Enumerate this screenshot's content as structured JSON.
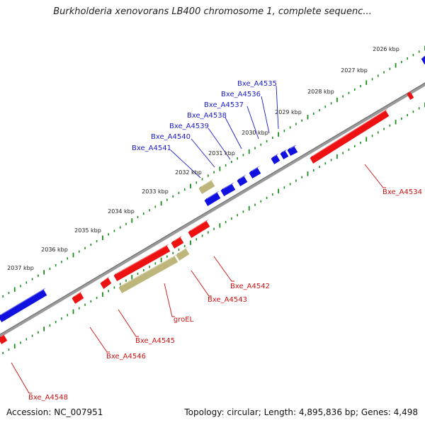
{
  "title": "Burkholderia xenovorans LB400 chromosome 1, complete sequenc...",
  "footer": {
    "accession": "Accession: NC_007951",
    "summary": "Topology: circular; Length: 4,895,836 bp; Genes: 4,498"
  },
  "colors": {
    "forward_gene": "#1010e0",
    "reverse_gene": "#ee1111",
    "rna_gene": "#bdb57a",
    "backbone": "#888888",
    "ticks": "#1a8c1a",
    "forward_label": "#1a1ac8",
    "reverse_label": "#cc1111"
  },
  "kbp_labels": [
    "2026 kbp",
    "2027 kbp",
    "2028 kbp",
    "2029 kbp",
    "2030 kbp",
    "2031 kbp",
    "2032 kbp",
    "2033 kbp",
    "2034 kbp",
    "2035 kbp",
    "2036 kbp",
    "2037 kbp"
  ],
  "forward_genes": [
    "Bxe_A4535",
    "Bxe_A4536",
    "Bxe_A4537",
    "Bxe_A4538",
    "Bxe_A4539",
    "Bxe_A4540",
    "Bxe_A4541"
  ],
  "reverse_genes": [
    "Bxe_A4534",
    "Bxe_A4542",
    "Bxe_A4543",
    "groEL",
    "Bxe_A4545",
    "Bxe_A4546",
    "Bxe_A4548"
  ]
}
